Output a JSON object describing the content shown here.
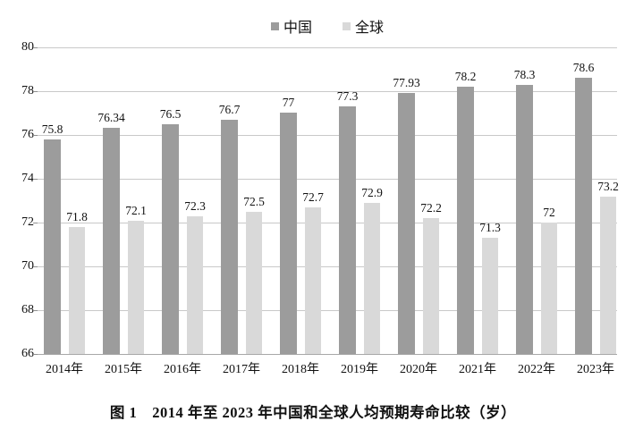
{
  "figure": {
    "caption": "图 1　2014 年至 2023 年中国和全球人均预期寿命比较（岁）"
  },
  "chart_data": {
    "type": "bar",
    "title": "",
    "xlabel": "",
    "ylabel": "",
    "categories": [
      "2014年",
      "2015年",
      "2016年",
      "2017年",
      "2018年",
      "2019年",
      "2020年",
      "2021年",
      "2022年",
      "2023年"
    ],
    "series": [
      {
        "name": "中国",
        "color": "#9c9c9c",
        "values": [
          75.8,
          76.34,
          76.5,
          76.7,
          77,
          77.3,
          77.93,
          78.2,
          78.3,
          78.6
        ]
      },
      {
        "name": "全球",
        "color": "#d9d9d9",
        "values": [
          71.8,
          72.1,
          72.3,
          72.5,
          72.7,
          72.9,
          72.2,
          71.3,
          72,
          73.2
        ]
      }
    ],
    "ylim": [
      66,
      80
    ],
    "yticks": [
      66,
      68,
      70,
      72,
      74,
      76,
      78,
      80
    ],
    "grid": true,
    "legend_position": "top",
    "colors": {
      "gridline": "#c9c9c9",
      "axis_line": "#a8a8a8",
      "text": "#111111"
    }
  }
}
